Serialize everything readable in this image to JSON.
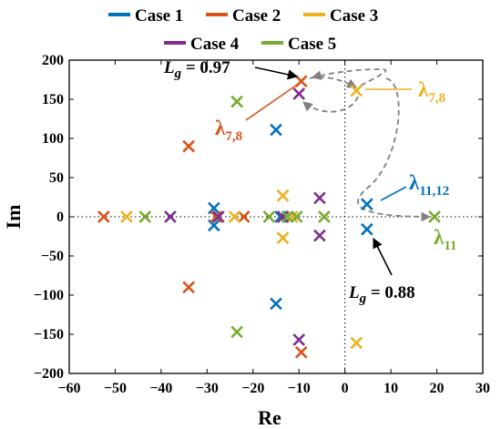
{
  "chart_data": {
    "type": "scatter",
    "title": "",
    "xlabel": "Re",
    "ylabel": "Im",
    "xlim": [
      -60,
      30
    ],
    "ylim": [
      -200,
      200
    ],
    "xticks": [
      -60,
      -50,
      -40,
      -30,
      -20,
      -10,
      0,
      10,
      20,
      30
    ],
    "yticks": [
      -200,
      -150,
      -100,
      -50,
      0,
      50,
      100,
      150,
      200
    ],
    "zero_lines": "dotted",
    "legend_position": "top, above plot",
    "series": [
      {
        "name": "Case 1",
        "color": "#0072BD",
        "points": [
          [
            -28.5,
            11
          ],
          [
            -28.5,
            -11
          ],
          [
            -15,
            111
          ],
          [
            -15,
            -111
          ],
          [
            -14,
            0
          ],
          [
            -12.5,
            0
          ],
          [
            4.8,
            16
          ],
          [
            4.8,
            -16
          ]
        ]
      },
      {
        "name": "Case 2",
        "color": "#D95319",
        "points": [
          [
            -52.5,
            0
          ],
          [
            -34,
            90
          ],
          [
            -34,
            -90
          ],
          [
            -28,
            0
          ],
          [
            -22,
            0
          ],
          [
            -13.5,
            0
          ],
          [
            -9.5,
            173
          ],
          [
            -9.5,
            -173
          ]
        ]
      },
      {
        "name": "Case 3",
        "color": "#EDB120",
        "points": [
          [
            -47.5,
            0
          ],
          [
            -24,
            0
          ],
          [
            -13.5,
            27
          ],
          [
            -13.5,
            -27
          ],
          [
            -11.5,
            0
          ],
          [
            -4.5,
            0
          ],
          [
            2.5,
            161
          ],
          [
            2.5,
            -161
          ]
        ]
      },
      {
        "name": "Case 4",
        "color": "#7E2F8E",
        "points": [
          [
            -38,
            0
          ],
          [
            -27.5,
            0
          ],
          [
            -13.5,
            0
          ],
          [
            -10,
            157
          ],
          [
            -10,
            -157
          ],
          [
            -5.5,
            24
          ],
          [
            -5.5,
            -24
          ]
        ]
      },
      {
        "name": "Case 5",
        "color": "#77AC30",
        "points": [
          [
            -43.5,
            0
          ],
          [
            -23.5,
            147
          ],
          [
            -23.5,
            -147
          ],
          [
            -16.5,
            0
          ],
          [
            -12.5,
            0
          ],
          [
            -10.5,
            0
          ],
          [
            -4.5,
            0
          ],
          [
            19.5,
            0
          ]
        ]
      }
    ],
    "annotations": [
      {
        "id": "lg-097",
        "label": "L",
        "subscript": "g",
        "suffix": " = 0.97",
        "color": "#000000"
      },
      {
        "id": "lg-088",
        "label": "L",
        "subscript": "g",
        "suffix": " = 0.88",
        "color": "#000000"
      },
      {
        "id": "lambda78-orange",
        "label": "λ",
        "subscript": "7,8",
        "color": "#D95319"
      },
      {
        "id": "lambda78-yellow",
        "label": "λ",
        "subscript": "7,8",
        "color": "#EDB120"
      },
      {
        "id": "lambda1112",
        "label": "λ",
        "subscript": "11,12",
        "color": "#0072BD"
      },
      {
        "id": "lambda11",
        "label": "λ",
        "subscript": "11",
        "color": "#77AC30"
      }
    ]
  }
}
